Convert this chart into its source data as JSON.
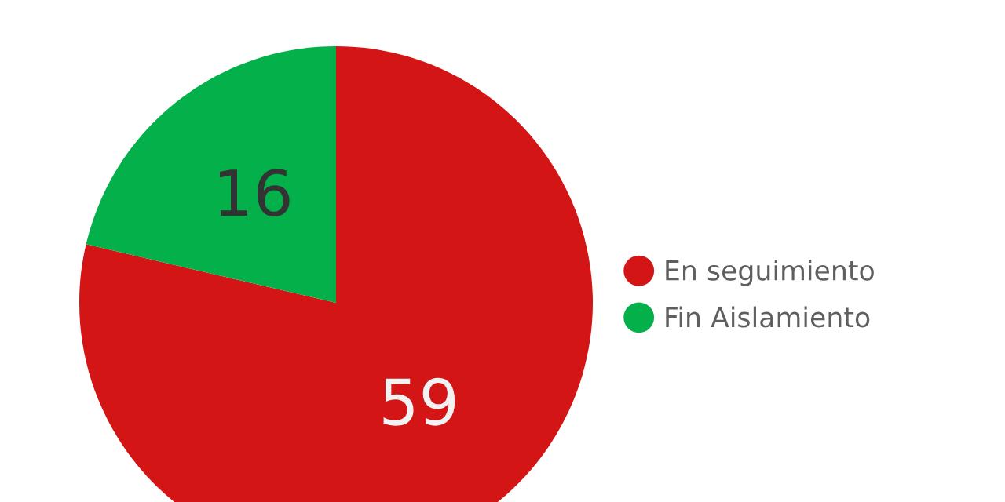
{
  "chart_data": {
    "type": "pie",
    "categories": [
      "En seguimiento",
      "Fin Aislamiento"
    ],
    "values": [
      59,
      16
    ],
    "colors": [
      "#d41515",
      "#03b04a"
    ],
    "data_labels": true,
    "legend": "right"
  }
}
